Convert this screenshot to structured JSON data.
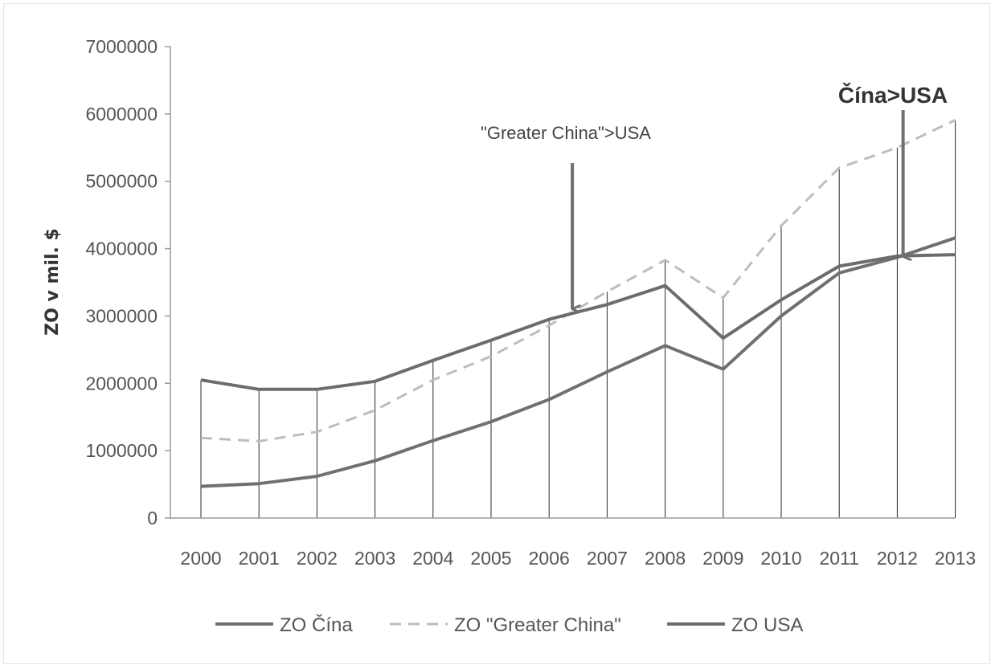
{
  "chart_data": {
    "type": "line",
    "title": "",
    "xlabel": "",
    "ylabel": "ZO v mil. $",
    "ylim": [
      0,
      7000000
    ],
    "yticks": [
      "0",
      "1000000",
      "2000000",
      "3000000",
      "4000000",
      "5000000",
      "6000000",
      "7000000"
    ],
    "categories": [
      "2000",
      "2001",
      "2002",
      "2003",
      "2004",
      "2005",
      "2006",
      "2007",
      "2008",
      "2009",
      "2010",
      "2011",
      "2012",
      "2013"
    ],
    "grid": "vertical drop lines",
    "legend_position": "bottom",
    "series": [
      {
        "name": "ZO Čína",
        "style": "solid",
        "color": "#707070",
        "values": [
          470000,
          510000,
          620000,
          850000,
          1150000,
          1430000,
          1760000,
          2170000,
          2560000,
          2210000,
          3000000,
          3640000,
          3870000,
          4160000
        ]
      },
      {
        "name": "ZO \"Greater China\"",
        "style": "dashed",
        "color": "#bdbdbd",
        "values": [
          1190000,
          1140000,
          1280000,
          1600000,
          2050000,
          2400000,
          2860000,
          3360000,
          3830000,
          3270000,
          4340000,
          5200000,
          5500000,
          5910000
        ]
      },
      {
        "name": "ZO USA",
        "style": "solid",
        "color": "#6c6c6c",
        "values": [
          2050000,
          1910000,
          1910000,
          2030000,
          2340000,
          2640000,
          2950000,
          3170000,
          3450000,
          2670000,
          3240000,
          3740000,
          3890000,
          3910000
        ]
      }
    ],
    "annotations": [
      {
        "id": "greater_china",
        "text": "\"Greater China\">USA",
        "x": 2006.4,
        "y_end": 3080000
      },
      {
        "id": "china",
        "text": "Čína>USA",
        "x": 2012.1,
        "y_end": 3860000
      }
    ]
  }
}
